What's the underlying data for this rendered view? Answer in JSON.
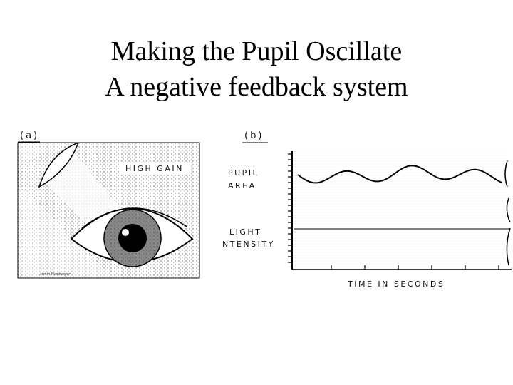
{
  "title": {
    "line1": "Making the Pupil Oscillate",
    "line2": "A negative feedback system"
  },
  "panel_a": {
    "label": "(a)",
    "annotation": "HIGH GAIN",
    "signature": "Armin Hemberger"
  },
  "panel_b": {
    "label": "(b)",
    "pupil_label": [
      "PUPIL",
      "AREA"
    ],
    "light_label": [
      "LIGHT",
      "NTENSITY"
    ],
    "x_axis_label": "TIME IN SECONDS"
  }
}
